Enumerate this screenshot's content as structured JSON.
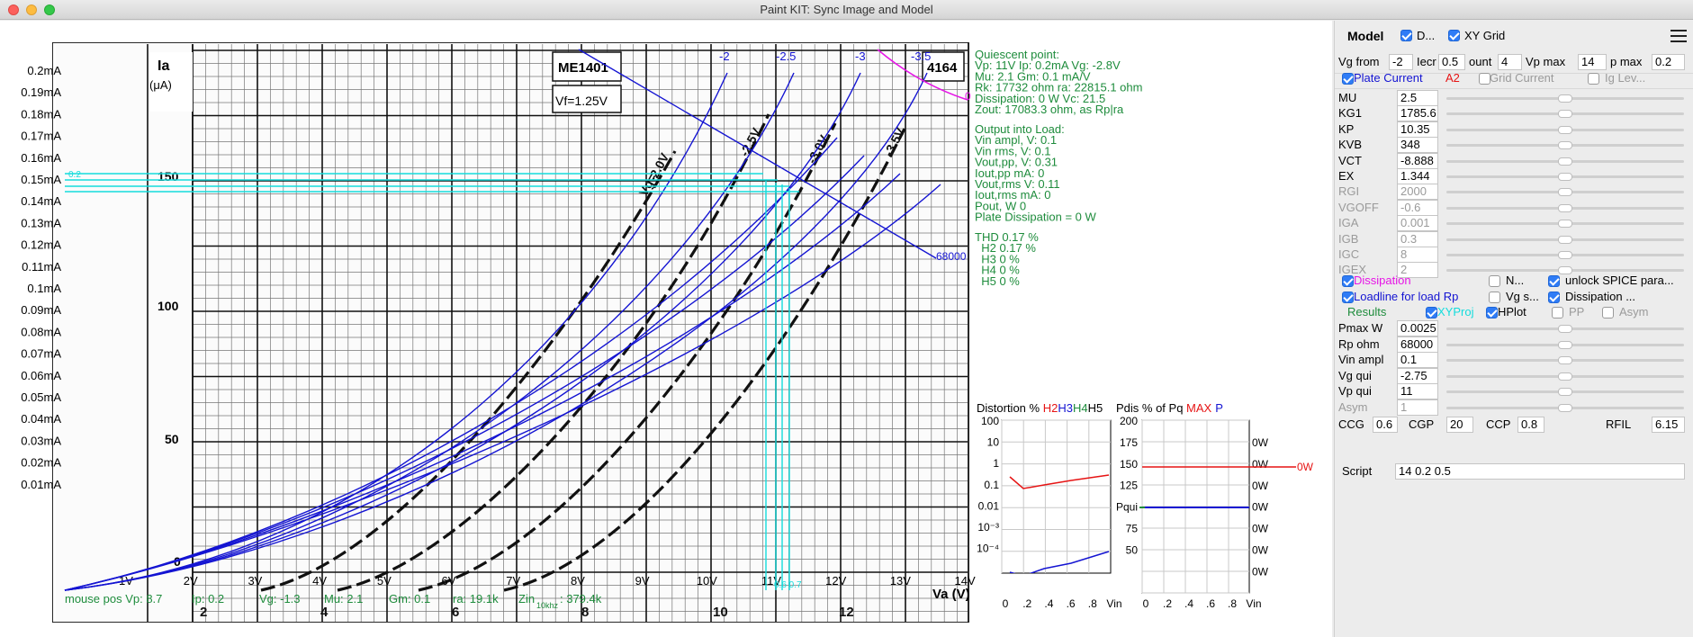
{
  "window": {
    "title": "Paint KIT: Sync Image and Model"
  },
  "colors": {
    "accent": "#2f7cf6",
    "curves": "#1414d2",
    "green": "#1e8c3c",
    "cyan": "#14dcdc",
    "magenta": "#e614e6",
    "red": "#e61414"
  },
  "icons": {
    "menu": "hamburger-menu-icon",
    "close": "close-icon",
    "minimize": "minimize-icon",
    "zoom": "zoom-icon"
  },
  "plot": {
    "y_ticks": [
      "0.2mA",
      "0.19mA",
      "0.18mA",
      "0.17mA",
      "0.16mA",
      "0.15mA",
      "0.14mA",
      "0.13mA",
      "0.12mA",
      "0.11mA",
      "0.1mA",
      "0.09mA",
      "0.08mA",
      "0.07mA",
      "0.06mA",
      "0.05mA",
      "0.04mA",
      "0.03mA",
      "0.02mA",
      "0.01mA"
    ],
    "x_ticks": [
      "1V",
      "2V",
      "3V",
      "4V",
      "5V",
      "6V",
      "7V",
      "8V",
      "9V",
      "10V",
      "11V",
      "12V",
      "13V",
      "14V"
    ],
    "grid_labels": [
      "-2",
      "-2.5",
      "-3",
      "-3.5"
    ],
    "loadline_label": "68000",
    "cyan_label_left": "0.2",
    "cyan_label_bottom": "0.6 0.7",
    "magenta_label": "0",
    "mouse_pos": {
      "prefix": "mouse pos Vp: 8.7",
      "ip": "Ip: 0.2",
      "vg": "Vg: -1.3",
      "mu": "Mu: 2.1",
      "gm": "Gm: 0.1",
      "ra": "ra: 19.1k",
      "zin": "Zin",
      "zin_sub": "10khz",
      "zin_val": ": 379.4k"
    },
    "scan": {
      "tube": "ME1401",
      "right_tube": "4164",
      "vf": "Vf=1.25V",
      "ia": "Ia",
      "ia_unit": "(μA)",
      "va": "Va (V)",
      "ia_ticks": [
        "150",
        "100",
        "50",
        "0"
      ],
      "bottom_nums": [
        "2",
        "4",
        "6",
        "8",
        "10",
        "12"
      ],
      "curve_labels": [
        "-2.0V",
        "-2.5V",
        "-3.0V",
        "-3.5V"
      ],
      "vg_side": "Vg="
    }
  },
  "info": {
    "quiescent": [
      "Quiescent point:",
      "Vp: 11V  Ip: 0.2mA  Vg: -2.8V",
      "Mu: 2.1  Gm: 0.1 mA/V",
      "Rk: 17732 ohm  ra: 22815.1 ohm",
      "Dissipation: 0 W  Vc: 21.5",
      "Zout: 17083.3 ohm, as Rp|ra"
    ],
    "output": [
      "Output into Load:",
      "Vin ampl, V: 0.1",
      "Vin rms,  V: 0.1",
      "Vout,pp,   V: 0.31",
      "Iout,pp   mA: 0",
      "Vout,rms   V: 0.11",
      "Iout,rms  mA: 0",
      "Pout, W      0",
      "Plate Dissipation = 0 W"
    ],
    "thd": [
      "THD 0.17 %",
      "  H2 0.17 %",
      "  H3 0 %",
      "  H4 0 %",
      "  H5 0 %"
    ]
  },
  "distortion": {
    "title_prefix": "Distortion % ",
    "h2": "H2",
    "h3": "H3",
    "h4": "H4",
    "h5": "H5",
    "y_ticks": [
      "100",
      "10",
      "1",
      "0.1",
      "0.01",
      "10⁻³",
      "10⁻⁴"
    ],
    "x_ticks": [
      "0",
      ".2",
      ".4",
      ".6",
      ".8",
      "Vin"
    ]
  },
  "pdis": {
    "title_prefix": "Pdis % of Pq ",
    "max": "MAX",
    "p": "P",
    "y_ticks": [
      "200",
      "175",
      "150",
      "125",
      "Pqui",
      "75",
      "50"
    ],
    "right_ticks": [
      "0W",
      "0W",
      "0W",
      "0W",
      "0W",
      "0W",
      "0W"
    ],
    "red_label": "0W",
    "x_ticks": [
      "0",
      ".2",
      ".4",
      ".6",
      ".8",
      "Vin"
    ]
  },
  "panel": {
    "model_label": "Model",
    "d_label": "D...",
    "xygrid_label": "XY Grid",
    "vg_from_label": "Vg from",
    "vg_from": "-2",
    "incr_label": "Iecr",
    "incr": "0.5",
    "count_label": "ount",
    "count": "4",
    "vpmax_label": "Vp max",
    "vpmax": "14",
    "ipmax_label": "p max",
    "ipmax": "0.2",
    "plate_current": "Plate Current",
    "a2": "A2",
    "grid_current": "Grid Current",
    "ig_lev": "Ig Lev...",
    "params": [
      {
        "name": "MU",
        "value": "2.5",
        "enabled": true
      },
      {
        "name": "KG1",
        "value": "1785.6",
        "enabled": true
      },
      {
        "name": "KP",
        "value": "10.35",
        "enabled": true
      },
      {
        "name": "KVB",
        "value": "348",
        "enabled": true
      },
      {
        "name": "VCT",
        "value": "-8.888",
        "enabled": true
      },
      {
        "name": "EX",
        "value": "1.344",
        "enabled": true
      },
      {
        "name": "RGI",
        "value": "2000",
        "enabled": false
      },
      {
        "name": "VGOFF",
        "value": "-0.6",
        "enabled": false
      },
      {
        "name": "IGA",
        "value": "0.001",
        "enabled": false
      },
      {
        "name": "IGB",
        "value": "0.3",
        "enabled": false
      },
      {
        "name": "IGC",
        "value": "8",
        "enabled": false
      },
      {
        "name": "IGEX",
        "value": "2",
        "enabled": false
      }
    ],
    "dissipation": "Dissipation",
    "n_label": "N...",
    "unlock": "unlock SPICE para...",
    "loadline": "Loadline for load Rp",
    "vgs": "Vg s...",
    "dissipation2": "Dissipation ...",
    "results": "Results",
    "xyproj": "XYProj",
    "hplot": "HPlot",
    "pp": "PP",
    "asym": "Asym",
    "results_fields": [
      {
        "name": "Pmax W",
        "value": "0.0025",
        "enabled": true
      },
      {
        "name": "Rp ohm",
        "value": "68000",
        "enabled": true
      },
      {
        "name": "Vin ampl",
        "value": "0.1",
        "enabled": true
      },
      {
        "name": "Vg qui",
        "value": "-2.75",
        "enabled": true
      },
      {
        "name": "Vp qui",
        "value": "11",
        "enabled": true
      },
      {
        "name": "Asym",
        "value": "1",
        "enabled": false
      }
    ],
    "ccg_label": "CCG",
    "ccg": "0.6",
    "cgp_label": "CGP",
    "cgp": "20",
    "ccp_label": "CCP",
    "ccp": "0.8",
    "rfil_label": "RFIL",
    "rfil": "6.15",
    "script_label": "Script",
    "script": "14 0.2 0.5"
  }
}
